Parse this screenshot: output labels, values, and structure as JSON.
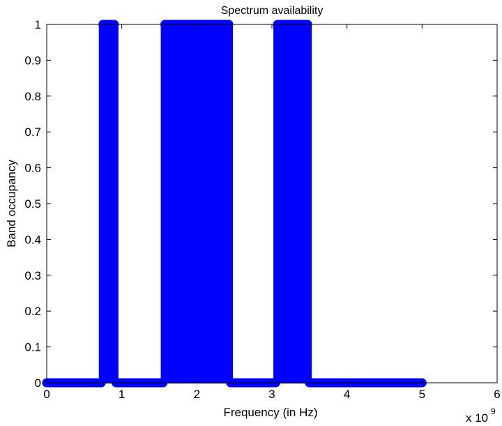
{
  "chart_data": {
    "type": "scatter",
    "title": "Spectrum availability",
    "xlabel": "Frequency (in Hz)",
    "ylabel": "Band occupancy",
    "x_exponent_label": "x 10",
    "x_exponent_power": "9",
    "xlim": [
      0,
      6
    ],
    "ylim": [
      0,
      1
    ],
    "x_ticks": [
      "0",
      "1",
      "2",
      "3",
      "4",
      "5",
      "6"
    ],
    "y_ticks": [
      "0",
      "0.1",
      "0.2",
      "0.3",
      "0.4",
      "0.5",
      "0.6",
      "0.7",
      "0.8",
      "0.9",
      "1"
    ],
    "x_tick_values": [
      0,
      1,
      2,
      3,
      4,
      5,
      6
    ],
    "y_tick_values": [
      0,
      0.1,
      0.2,
      0.3,
      0.4,
      0.5,
      0.6,
      0.7,
      0.8,
      0.9,
      1
    ],
    "grid": false,
    "color": "#0000ff",
    "x_unit_multiplier": 1000000000,
    "series": [
      {
        "stem": true,
        "x_start": 0,
        "x_end": 5,
        "x_step": 0.025,
        "occupied_bands": [
          [
            0.75,
            0.9
          ],
          [
            1.575,
            2.425
          ],
          [
            3.075,
            3.475
          ]
        ]
      }
    ]
  }
}
